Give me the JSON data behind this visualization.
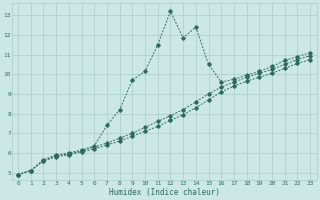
{
  "xlabel": "Humidex (Indice chaleur)",
  "bg_color": "#cce8e4",
  "line_color": "#2d6b5e",
  "grid_color": "#aacccc",
  "xlim": [
    -0.5,
    23.5
  ],
  "ylim": [
    4.6,
    13.6
  ],
  "xticks": [
    0,
    1,
    2,
    3,
    4,
    5,
    6,
    7,
    8,
    9,
    10,
    11,
    12,
    13,
    14,
    15,
    16,
    17,
    18,
    19,
    20,
    21,
    22,
    23
  ],
  "yticks": [
    5,
    6,
    7,
    8,
    9,
    10,
    11,
    12,
    13
  ],
  "series": [
    {
      "x": [
        0,
        1,
        2,
        3,
        4,
        5,
        6,
        7,
        8,
        9,
        10,
        11,
        12,
        13,
        14,
        15,
        16,
        17,
        18,
        19,
        20,
        21,
        22,
        23
      ],
      "y": [
        4.9,
        5.1,
        5.6,
        5.8,
        5.9,
        6.05,
        6.2,
        6.4,
        6.6,
        6.85,
        7.1,
        7.35,
        7.65,
        7.95,
        8.3,
        8.7,
        9.1,
        9.4,
        9.65,
        9.85,
        10.05,
        10.3,
        10.55,
        10.75
      ]
    },
    {
      "x": [
        0,
        1,
        2,
        3,
        4,
        5,
        6,
        7,
        8,
        9,
        10,
        11,
        12,
        13,
        14,
        15,
        16,
        17,
        18,
        19,
        20,
        21,
        22,
        23
      ],
      "y": [
        4.9,
        5.1,
        5.6,
        5.85,
        5.95,
        6.1,
        6.3,
        6.5,
        6.75,
        7.0,
        7.3,
        7.6,
        7.9,
        8.2,
        8.6,
        9.0,
        9.35,
        9.6,
        9.85,
        10.05,
        10.25,
        10.5,
        10.75,
        10.95
      ]
    },
    {
      "x": [
        0,
        1,
        2,
        3,
        4,
        5,
        6,
        7,
        8,
        9,
        10,
        11,
        12,
        13,
        14,
        15,
        16,
        17,
        18,
        19,
        20,
        21,
        22,
        23
      ],
      "y": [
        4.9,
        5.1,
        5.65,
        5.9,
        6.0,
        6.15,
        6.35,
        7.4,
        8.2,
        9.7,
        10.15,
        11.5,
        13.2,
        11.85,
        12.4,
        10.5,
        9.6,
        9.75,
        9.95,
        10.15,
        10.4,
        10.7,
        10.9,
        11.1
      ]
    }
  ]
}
